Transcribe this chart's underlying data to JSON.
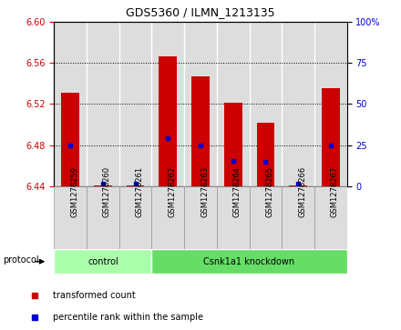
{
  "title": "GDS5360 / ILMN_1213135",
  "samples": [
    "GSM1278259",
    "GSM1278260",
    "GSM1278261",
    "GSM1278262",
    "GSM1278263",
    "GSM1278264",
    "GSM1278265",
    "GSM1278266",
    "GSM1278267"
  ],
  "bar_tops": [
    6.531,
    6.441,
    6.441,
    6.566,
    6.547,
    6.521,
    6.502,
    6.441,
    6.535
  ],
  "bar_bottom": 6.44,
  "blue_y": [
    6.48,
    6.443,
    6.443,
    6.487,
    6.48,
    6.465,
    6.464,
    6.443,
    6.48
  ],
  "ylim_left": [
    6.44,
    6.6
  ],
  "ylim_right": [
    0,
    100
  ],
  "yticks_left": [
    6.44,
    6.48,
    6.52,
    6.56,
    6.6
  ],
  "yticks_right": [
    0,
    25,
    50,
    75,
    100
  ],
  "ytick_labels_right": [
    "0",
    "25",
    "50",
    "75",
    "100%"
  ],
  "bar_color": "#cc0000",
  "blue_color": "#0000cc",
  "control_color": "#aaffaa",
  "knockdown_color": "#66dd66",
  "protocol_label": "protocol",
  "legend_items": [
    {
      "color": "#cc0000",
      "label": "transformed count"
    },
    {
      "color": "#0000cc",
      "label": "percentile rank within the sample"
    }
  ],
  "tick_label_color_left": "#cc0000",
  "tick_label_color_right": "#0000cc",
  "bar_width": 0.55,
  "col_bg_color": "#dddddd",
  "col_border_color": "#888888"
}
